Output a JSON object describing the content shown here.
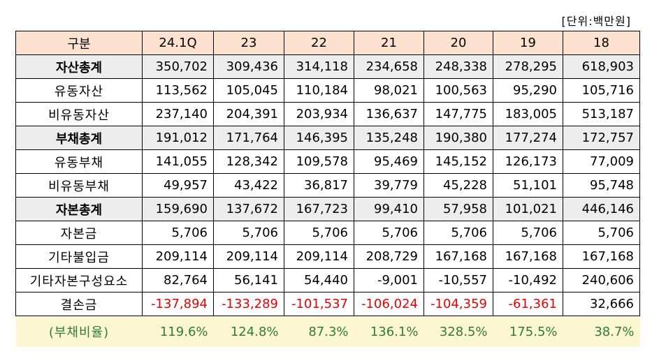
{
  "unit_label": "[단위:백만원]",
  "columns": [
    "구분",
    "24.1Q",
    "23",
    "22",
    "21",
    "20",
    "19",
    "18"
  ],
  "rows": [
    {
      "label": "자산총계",
      "total": true,
      "values": [
        "350,702",
        "309,436",
        "314,118",
        "234,658",
        "248,338",
        "278,295",
        "618,903"
      ]
    },
    {
      "label": "유동자산",
      "total": false,
      "values": [
        "113,562",
        "105,045",
        "110,184",
        "98,021",
        "100,563",
        "95,290",
        "105,716"
      ]
    },
    {
      "label": "비유동자산",
      "total": false,
      "values": [
        "237,140",
        "204,391",
        "203,934",
        "136,637",
        "147,775",
        "183,005",
        "513,187"
      ]
    },
    {
      "label": "부채총계",
      "total": true,
      "values": [
        "191,012",
        "171,764",
        "146,395",
        "135,248",
        "190,380",
        "177,274",
        "172,757"
      ]
    },
    {
      "label": "유동부채",
      "total": false,
      "values": [
        "141,055",
        "128,342",
        "109,578",
        "95,469",
        "145,152",
        "126,173",
        "77,009"
      ]
    },
    {
      "label": "비유동부채",
      "total": false,
      "values": [
        "49,957",
        "43,422",
        "36,817",
        "39,779",
        "45,228",
        "51,101",
        "95,748"
      ]
    },
    {
      "label": "자본총계",
      "total": true,
      "values": [
        "159,690",
        "137,672",
        "167,723",
        "99,410",
        "57,958",
        "101,021",
        "446,146"
      ]
    },
    {
      "label": "자본금",
      "total": false,
      "values": [
        "5,706",
        "5,706",
        "5,706",
        "5,706",
        "5,706",
        "5,706",
        "5,706"
      ]
    },
    {
      "label": "기타불입금",
      "total": false,
      "values": [
        "209,114",
        "209,114",
        "209,114",
        "208,729",
        "167,168",
        "167,168",
        "167,168"
      ]
    },
    {
      "label": "기타자본구성요소",
      "total": false,
      "values": [
        "82,764",
        "56,141",
        "54,440",
        "-9,001",
        "-10,557",
        "-10,492",
        "240,606"
      ]
    },
    {
      "label": "결손금",
      "total": false,
      "values": [
        "-137,894",
        "-133,289",
        "-101,537",
        "-106,024",
        "-104,359",
        "-61,361",
        "32,666"
      ]
    }
  ],
  "ratio_row": {
    "label": "(부채비율)",
    "values": [
      "119.6%",
      "124.8%",
      "87.3%",
      "136.1%",
      "328.5%",
      "175.5%",
      "38.7%"
    ]
  },
  "colors": {
    "header_bg": "#fde1cf",
    "total_bg": "#ededed",
    "ratio_bg": "#fdf6d3",
    "negative": "#e60000",
    "ratio_text": "#2e7d32"
  }
}
